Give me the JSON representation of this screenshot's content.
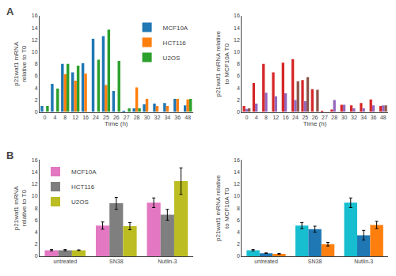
{
  "chart_data": [
    {
      "type": "bar",
      "categories": [
        0,
        4,
        8,
        12,
        16,
        24,
        25,
        26,
        27,
        28,
        30,
        32,
        34,
        36,
        48
      ],
      "series": [
        {
          "name": "MCF10A",
          "values": [
            1.0,
            4.7,
            8.0,
            6.6,
            8.1,
            12.2,
            12.6,
            3.5,
            0.15,
            0.6,
            1.3,
            1.4,
            1.5,
            2.2,
            1.1
          ]
        },
        {
          "name": "HCT116",
          "values": [
            0.0,
            0.0,
            6.3,
            5.2,
            6.4,
            0.0,
            4.5,
            0.0,
            0.0,
            4.1,
            2.2,
            1.0,
            1.0,
            2.2,
            2.1
          ]
        },
        {
          "name": "U2OS",
          "values": [
            1.0,
            3.9,
            8.0,
            7.7,
            0.0,
            8.7,
            13.7,
            8.5,
            0.6,
            0.6,
            0.0,
            0.0,
            0.0,
            0.0,
            2.2
          ]
        }
      ],
      "xlabel": "Time (h)",
      "ylabel": "p21waf1 mRNA relative to T0",
      "ylim": [
        0,
        16
      ],
      "yticks": [
        0,
        2,
        4,
        6,
        8,
        10,
        12,
        14,
        16
      ],
      "grid": false,
      "legend": "upper right",
      "annotations": [
        "A"
      ]
    },
    {
      "type": "bar",
      "categories": [
        0,
        4,
        8,
        12,
        16,
        24,
        25,
        26,
        27,
        28,
        30,
        32,
        34,
        36,
        48
      ],
      "series": [
        {
          "name": "MCF10A",
          "values": [
            1.0,
            4.8,
            8.0,
            6.6,
            8.2,
            8.8,
            5.3,
            3.8,
            0.15,
            0.4,
            1.2,
            1.1,
            1.5,
            2.1,
            1.0
          ]
        },
        {
          "name": "HCT116",
          "values": [
            0.5,
            1.4,
            3.2,
            2.6,
            3.1,
            2.0,
            1.8,
            0.0,
            0.0,
            2.0,
            1.2,
            0.6,
            0.6,
            1.1,
            1.1
          ]
        },
        {
          "name": "U2OS",
          "values": [
            0.6,
            0.0,
            0.0,
            0.0,
            0.0,
            5.1,
            5.8,
            3.7,
            0.0,
            0.0,
            0.0,
            0.0,
            0.0,
            0.0,
            1.1
          ]
        }
      ],
      "xlabel": "Time (h)",
      "ylabel": "p21waf1 mRNA relative to MCF10A T0",
      "ylim": [
        0,
        16
      ],
      "yticks": [
        0,
        2,
        4,
        6,
        8,
        10,
        12,
        14,
        16
      ],
      "grid": false
    },
    {
      "type": "bar",
      "categories": [
        "untreated",
        "SN38",
        "Nutlin-3"
      ],
      "series": [
        {
          "name": "MCF10A",
          "values": [
            1.0,
            5.1,
            8.9
          ],
          "errors": [
            0.1,
            0.6,
            0.8
          ]
        },
        {
          "name": "HCT116",
          "values": [
            1.0,
            8.8,
            6.9
          ],
          "errors": [
            0.1,
            1.0,
            0.9
          ]
        },
        {
          "name": "U2OS",
          "values": [
            1.0,
            5.0,
            12.5
          ],
          "errors": [
            0.05,
            0.6,
            2.2
          ]
        }
      ],
      "ylabel": "p21waf1 mRNA relative to T0",
      "ylim": [
        0,
        16
      ],
      "yticks": [
        0,
        2,
        4,
        6,
        8,
        10,
        12,
        14,
        16
      ],
      "grid": false,
      "legend": "upper left",
      "annotations": [
        "B"
      ]
    },
    {
      "type": "bar",
      "categories": [
        "untreated",
        "SN38",
        "Nutlin-3"
      ],
      "series": [
        {
          "name": "MCF10A",
          "values": [
            1.0,
            5.1,
            8.9
          ],
          "errors": [
            0.1,
            0.5,
            0.8
          ]
        },
        {
          "name": "HCT116",
          "values": [
            0.5,
            4.5,
            3.5
          ],
          "errors": [
            0.05,
            0.5,
            0.8
          ]
        },
        {
          "name": "U2OS",
          "values": [
            0.4,
            2.0,
            5.2
          ],
          "errors": [
            0.05,
            0.3,
            0.6
          ]
        }
      ],
      "ylabel": "p21waf1 mRNA relative to MCF10A T0",
      "ylim": [
        0,
        16
      ],
      "yticks": [
        0,
        2,
        4,
        6,
        8,
        10,
        12,
        14,
        16
      ],
      "grid": false
    }
  ]
}
